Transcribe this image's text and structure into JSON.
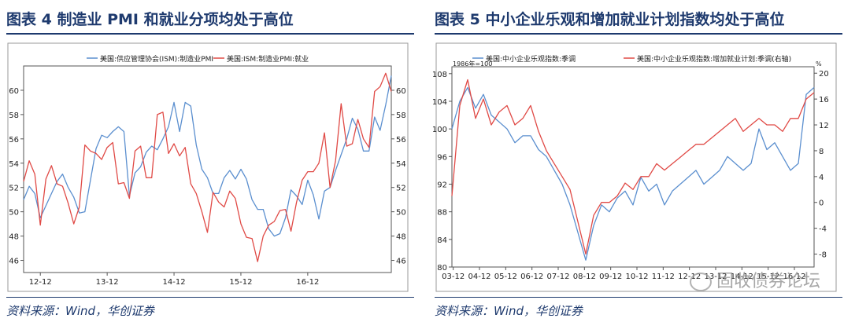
{
  "left_panel": {
    "title": "图表 4 制造业 PMI 和就业分项均处于高位",
    "source": "资料来源：Wind，华创证券"
  },
  "right_panel": {
    "title": "图表 5 中小企业乐观和增加就业计划指数均处于高位",
    "source": "资料来源：Wind，华创证券",
    "watermark": "固收债券论坛"
  },
  "colors": {
    "title": "#1e3a6e",
    "blue": "#5b8fcf",
    "red": "#e04a46"
  },
  "chart_data": [
    {
      "type": "line",
      "title": "",
      "x_tick_labels": [
        "12-12",
        "13-12",
        "14-12",
        "15-12",
        "16-12"
      ],
      "x_tick_index": [
        3,
        15,
        27,
        39,
        51
      ],
      "ylim_left": [
        45,
        62
      ],
      "ylim_right": [
        45,
        62
      ],
      "yticks_left": [
        46,
        48,
        50,
        52,
        54,
        56,
        58,
        60
      ],
      "yticks_right": [
        46,
        48,
        50,
        52,
        54,
        56,
        58,
        60
      ],
      "grid": false,
      "legend_position": "top",
      "series": [
        {
          "name": "美国:供应管理协会(ISM):制造业PMI",
          "color": "#5b8fcf",
          "axis": "left",
          "values": [
            51.0,
            52.1,
            51.5,
            49.5,
            50.5,
            51.5,
            52.5,
            53.1,
            52.0,
            51.2,
            49.9,
            50.0,
            52.6,
            55.2,
            56.3,
            56.1,
            56.6,
            57.0,
            56.6,
            51.3,
            53.2,
            53.7,
            54.9,
            55.4,
            55.1,
            56.0,
            57.0,
            59.0,
            56.6,
            59.0,
            58.7,
            55.5,
            53.5,
            52.8,
            51.5,
            51.5,
            52.8,
            53.4,
            52.7,
            53.5,
            52.7,
            51.0,
            50.2,
            50.2,
            48.6,
            48.0,
            48.2,
            49.5,
            51.8,
            51.3,
            50.6,
            52.6,
            51.4,
            49.4,
            51.7,
            52.0,
            53.4,
            54.7,
            56.0,
            57.7,
            56.8,
            55.0,
            55.0,
            57.8,
            56.7,
            58.8,
            61.2
          ]
        },
        {
          "name": "美国:ISM:制造业PMI:就业",
          "color": "#e04a46",
          "axis": "right",
          "values": [
            52.5,
            54.2,
            53.1,
            48.9,
            52.7,
            53.8,
            52.3,
            52.1,
            50.7,
            49.0,
            50.4,
            55.5,
            55.0,
            54.8,
            54.3,
            55.3,
            55.7,
            52.3,
            52.4,
            51.1,
            55.0,
            55.4,
            52.8,
            52.8,
            58.0,
            58.2,
            54.8,
            55.6,
            54.6,
            55.3,
            52.3,
            51.5,
            50.0,
            48.3,
            51.6,
            50.8,
            50.4,
            51.7,
            51.1,
            49.0,
            47.9,
            47.8,
            45.9,
            48.0,
            48.9,
            49.2,
            50.1,
            50.2,
            48.4,
            50.8,
            52.6,
            53.3,
            53.3,
            54.0,
            56.5,
            52.0,
            54.2,
            58.9,
            55.4,
            55.6,
            57.6,
            56.0,
            55.3,
            59.9,
            60.3,
            61.4,
            59.9
          ]
        }
      ]
    },
    {
      "type": "line",
      "title": "",
      "x_tick_labels": [
        "03-12",
        "04-12",
        "05-12",
        "06-12",
        "07-12",
        "08-12",
        "09-12",
        "10-12",
        "11-12",
        "12-12",
        "13-12",
        "14-12",
        "15-12",
        "16-12"
      ],
      "x_tick_index": [
        1,
        21,
        41,
        61,
        81,
        101,
        121,
        141,
        161,
        181,
        201,
        221,
        241,
        261
      ],
      "left_axis_unit": "1986年=100",
      "right_axis_unit": "%",
      "ylim_left": [
        80,
        109
      ],
      "ylim_right": [
        -10,
        21
      ],
      "yticks_left": [
        80,
        84,
        88,
        92,
        96,
        100,
        104,
        108
      ],
      "yticks_right": [
        -8,
        -4,
        0,
        4,
        8,
        12,
        16,
        20
      ],
      "grid": false,
      "legend_position": "top",
      "series": [
        {
          "name": "美国:中小企业乐观指数:季调",
          "color": "#5b8fcf",
          "axis": "left",
          "x": [
            0,
            6,
            12,
            18,
            24,
            30,
            36,
            42,
            48,
            54,
            60,
            66,
            72,
            78,
            84,
            90,
            96,
            102,
            108,
            114,
            120,
            126,
            132,
            138,
            144,
            150,
            156,
            162,
            168,
            174,
            180,
            186,
            192,
            198,
            204,
            210,
            216,
            222,
            228,
            234,
            240,
            246,
            252,
            258,
            264,
            270,
            276
          ],
          "values": [
            100,
            104,
            106,
            103,
            105,
            102,
            101,
            100,
            98,
            99,
            99,
            97,
            96,
            94,
            92,
            89,
            85,
            81,
            86,
            89,
            88,
            90,
            91,
            89,
            93,
            91,
            92,
            89,
            91,
            92,
            93,
            94,
            92,
            93,
            94,
            96,
            95,
            94,
            95,
            100,
            97,
            98,
            96,
            94,
            95,
            105,
            106
          ]
        },
        {
          "name": "美国:中小企业乐观指数:增加就业计划:季调(右轴)",
          "color": "#e04a46",
          "axis": "right",
          "x": [
            0,
            6,
            12,
            18,
            24,
            30,
            36,
            42,
            48,
            54,
            60,
            66,
            72,
            78,
            84,
            90,
            96,
            102,
            108,
            114,
            120,
            126,
            132,
            138,
            144,
            150,
            156,
            162,
            168,
            174,
            180,
            186,
            192,
            198,
            204,
            210,
            216,
            222,
            228,
            234,
            240,
            246,
            252,
            258,
            264,
            270,
            276
          ],
          "values": [
            1,
            15,
            19,
            13,
            16,
            12,
            14,
            15,
            12,
            13,
            15,
            11,
            8,
            6,
            4,
            2,
            -3,
            -8,
            -2,
            0,
            0,
            1,
            3,
            2,
            4,
            4,
            6,
            5,
            6,
            7,
            8,
            9,
            9,
            10,
            11,
            12,
            13,
            11,
            12,
            13,
            12,
            12,
            11,
            13,
            13,
            16,
            17
          ]
        }
      ]
    }
  ]
}
